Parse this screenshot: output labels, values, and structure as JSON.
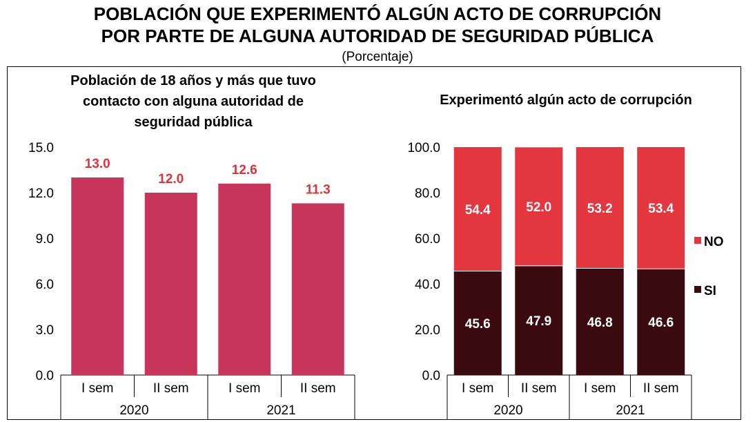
{
  "header": {
    "title_line1": "POBLACIÓN QUE EXPERIMENTÓ ALGÚN ACTO DE CORRUPCIÓN",
    "title_line2": "POR PARTE DE ALGUNA AUTORIDAD DE SEGURIDAD PÚBLICA",
    "subtitle": "(Porcentaje)"
  },
  "colors": {
    "bar_left": "#c7365a",
    "label_left": "#d9353a",
    "no": "#e3363f",
    "si": "#3a0a0f"
  },
  "chart_data": [
    {
      "type": "bar",
      "title_lines": [
        "Población de 18 años y más que tuvo",
        "contacto con alguna autoridad de",
        "seguridad pública"
      ],
      "categories": [
        "I sem",
        "II sem",
        "I sem",
        "II sem"
      ],
      "groups": [
        "2020",
        "2021"
      ],
      "values": [
        13.0,
        12.0,
        12.6,
        11.3
      ],
      "value_labels": [
        "13.0",
        "12.0",
        "12.6",
        "11.3"
      ],
      "ylim": [
        0,
        15
      ],
      "yticks": [
        "0.0",
        "3.0",
        "6.0",
        "9.0",
        "12.0",
        "15.0"
      ],
      "grid": false
    },
    {
      "type": "bar",
      "stacked": true,
      "title": "Experimentó algún acto de corrupción",
      "categories": [
        "I sem",
        "II sem",
        "I sem",
        "II sem"
      ],
      "groups": [
        "2020",
        "2021"
      ],
      "series": [
        {
          "name": "SI",
          "values": [
            45.6,
            47.9,
            46.8,
            46.6
          ],
          "labels": [
            "45.6",
            "47.9",
            "46.8",
            "46.6"
          ]
        },
        {
          "name": "NO",
          "values": [
            54.4,
            52.0,
            53.2,
            53.4
          ],
          "labels": [
            "54.4",
            "52.0",
            "53.2",
            "53.4"
          ]
        }
      ],
      "ylim": [
        0,
        100
      ],
      "yticks": [
        "0.0",
        "20.0",
        "40.0",
        "60.0",
        "80.0",
        "100.0"
      ],
      "legend_position": "right",
      "grid": false
    }
  ]
}
